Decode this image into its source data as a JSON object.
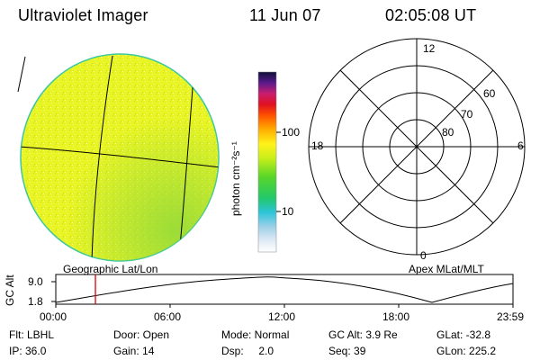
{
  "header": {
    "title": "Ultraviolet Imager",
    "date": "11 Jun 07",
    "time": "02:05:08 UT"
  },
  "colorbar": {
    "unit_label": "photon cm⁻²s⁻¹",
    "tick_100": "100",
    "tick_10": "10"
  },
  "polar": {
    "mlt_12": "12",
    "mlt_18": "18",
    "mlt_6": "6",
    "mlt_0": "0",
    "lat_60": "60",
    "lat_70": "70",
    "lat_80": "80"
  },
  "orbit": {
    "left_label": "Geographic Lat/Lon",
    "right_label": "Apex MLat/MLT",
    "y_axis_label": "GC Alt",
    "y_tick_top": "9.0",
    "y_tick_bottom": "1.8",
    "x_ticks": [
      "00:00",
      "06:00",
      "12:00",
      "18:00",
      "23:59"
    ],
    "marker_time_hours": 2.08
  },
  "info": {
    "flt": "Flt: LBHL",
    "ip": "IP: 36.0",
    "door": "Door: Open",
    "gain": "Gain: 14",
    "mode": "Mode: Normal",
    "dsp": "Dsp:     2.0",
    "gc_alt": "GC Alt: 3.9 Re",
    "seq": "Seq: 39",
    "glat": "GLat: -32.8",
    "glon": "GLon: 225.2"
  },
  "colors": {
    "disk_fill": "#e6f21a",
    "disk_edge": "#3cc8a0",
    "marker": "#dd0000"
  }
}
